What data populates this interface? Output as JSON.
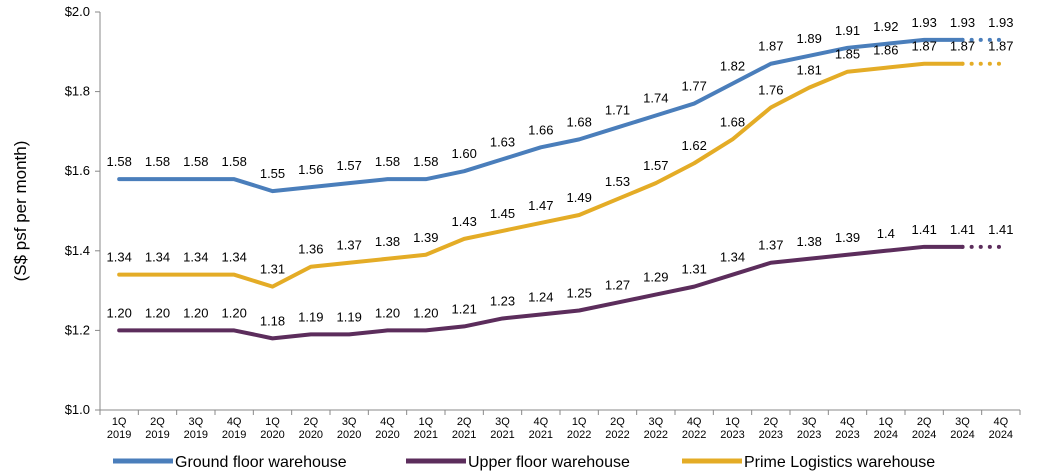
{
  "chart_data": {
    "type": "line",
    "title": "",
    "xlabel": "",
    "ylabel": "(S$ psf per month)",
    "ylim": [
      1.0,
      2.0
    ],
    "yticks": [
      "$1.0",
      "$1.2",
      "$1.4",
      "$1.6",
      "$1.8",
      "$2.0"
    ],
    "ytick_values": [
      1.0,
      1.2,
      1.4,
      1.6,
      1.8,
      2.0
    ],
    "grid": false,
    "legend_position": "bottom",
    "categories": [
      [
        "1Q",
        "2019"
      ],
      [
        "2Q",
        "2019"
      ],
      [
        "3Q",
        "2019"
      ],
      [
        "4Q",
        "2019"
      ],
      [
        "1Q",
        "2020"
      ],
      [
        "2Q",
        "2020"
      ],
      [
        "3Q",
        "2020"
      ],
      [
        "4Q",
        "2020"
      ],
      [
        "1Q",
        "2021"
      ],
      [
        "2Q",
        "2021"
      ],
      [
        "3Q",
        "2021"
      ],
      [
        "4Q",
        "2021"
      ],
      [
        "1Q",
        "2022"
      ],
      [
        "2Q",
        "2022"
      ],
      [
        "3Q",
        "2022"
      ],
      [
        "4Q",
        "2022"
      ],
      [
        "1Q",
        "2023"
      ],
      [
        "2Q",
        "2023"
      ],
      [
        "3Q",
        "2023"
      ],
      [
        "4Q",
        "2023"
      ],
      [
        "1Q",
        "2024"
      ],
      [
        "2Q",
        "2024"
      ],
      [
        "3Q",
        "2024"
      ],
      [
        "4Q",
        "2024"
      ]
    ],
    "series": [
      {
        "name": "Ground floor warehouse",
        "color": "#4a7ebb",
        "values": [
          1.58,
          1.58,
          1.58,
          1.58,
          1.55,
          1.56,
          1.57,
          1.58,
          1.58,
          1.6,
          1.63,
          1.66,
          1.68,
          1.71,
          1.74,
          1.77,
          1.82,
          1.87,
          1.89,
          1.91,
          1.92,
          1.93,
          1.93,
          1.93
        ],
        "labels": [
          "1.58",
          "1.58",
          "1.58",
          "1.58",
          "1.55",
          "1.56",
          "1.57",
          "1.58",
          "1.58",
          "1.60",
          "1.63",
          "1.66",
          "1.68",
          "1.71",
          "1.74",
          "1.77",
          "1.82",
          "1.87",
          "1.89",
          "1.91",
          "1.92",
          "1.93",
          "1.93",
          "1.93"
        ],
        "forecast_from_index": 22
      },
      {
        "name": "Upper floor warehouse",
        "color": "#5c2d5c",
        "values": [
          1.2,
          1.2,
          1.2,
          1.2,
          1.18,
          1.19,
          1.19,
          1.2,
          1.2,
          1.21,
          1.23,
          1.24,
          1.25,
          1.27,
          1.29,
          1.31,
          1.34,
          1.37,
          1.38,
          1.39,
          1.4,
          1.41,
          1.41,
          1.41
        ],
        "labels": [
          "1.20",
          "1.20",
          "1.20",
          "1.20",
          "1.18",
          "1.19",
          "1.19",
          "1.20",
          "1.20",
          "1.21",
          "1.23",
          "1.24",
          "1.25",
          "1.27",
          "1.29",
          "1.31",
          "1.34",
          "1.37",
          "1.38",
          "1.39",
          "1.4",
          "1.41",
          "1.41",
          "1.41"
        ],
        "forecast_from_index": 22
      },
      {
        "name": "Prime Logistics warehouse",
        "color": "#e4ac26",
        "values": [
          1.34,
          1.34,
          1.34,
          1.34,
          1.31,
          1.36,
          1.37,
          1.38,
          1.39,
          1.43,
          1.45,
          1.47,
          1.49,
          1.53,
          1.57,
          1.62,
          1.68,
          1.76,
          1.81,
          1.85,
          1.86,
          1.87,
          1.87,
          1.87
        ],
        "labels": [
          "1.34",
          "1.34",
          "1.34",
          "1.34",
          "1.31",
          "1.36",
          "1.37",
          "1.38",
          "1.39",
          "1.43",
          "1.45",
          "1.47",
          "1.49",
          "1.53",
          "1.57",
          "1.62",
          "1.68",
          "1.76",
          "1.81",
          "1.85",
          "1.86",
          "1.87",
          "1.87",
          "1.87"
        ],
        "forecast_from_index": 22
      }
    ]
  }
}
